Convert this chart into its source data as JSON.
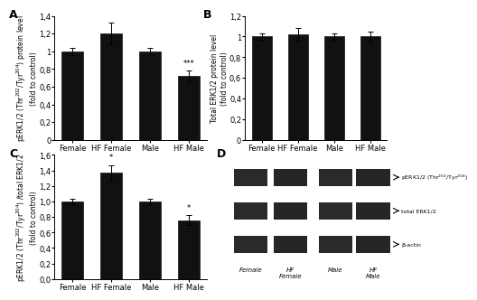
{
  "panel_A": {
    "categories": [
      "Female",
      "HF Female",
      "Male",
      "HF Male"
    ],
    "values": [
      1.0,
      1.2,
      1.0,
      0.72
    ],
    "errors": [
      0.04,
      0.12,
      0.04,
      0.06
    ],
    "ylabel": "pERK1/2 (Thr$^{202}$/Tyr$^{204}$) protein level\n(fold to control)",
    "label": "A",
    "ylim": [
      0,
      1.4
    ],
    "yticks": [
      0,
      0.2,
      0.4,
      0.6,
      0.8,
      1.0,
      1.2,
      1.4
    ],
    "ytick_labels": [
      "0",
      "0,2",
      "0,4",
      "0,6",
      "0,8",
      "1",
      "1,2",
      "1,4"
    ],
    "sig": [
      "",
      "",
      "",
      "***"
    ]
  },
  "panel_B": {
    "categories": [
      "Female",
      "HF Female",
      "Male",
      "HF Male"
    ],
    "values": [
      1.0,
      1.02,
      1.0,
      1.0
    ],
    "errors": [
      0.03,
      0.06,
      0.03,
      0.05
    ],
    "ylabel": "Total ERK1/2 protein level\n(fold to control)",
    "label": "B",
    "ylim": [
      0,
      1.2
    ],
    "yticks": [
      0,
      0.2,
      0.4,
      0.6,
      0.8,
      1.0,
      1.2
    ],
    "ytick_labels": [
      "0",
      "0,2",
      "0,4",
      "0,6",
      "0,8",
      "1",
      "1,2"
    ],
    "sig": [
      "",
      "",
      "",
      ""
    ]
  },
  "panel_C": {
    "categories": [
      "Female",
      "HF Female",
      "Male",
      "HF Male"
    ],
    "values": [
      1.0,
      1.37,
      1.0,
      0.76
    ],
    "errors": [
      0.03,
      0.1,
      0.03,
      0.06
    ],
    "ylabel": "pERK1/2 (Thr$^{202}$/Tyr$^{204}$) /total ERK1/2\n(fold to control)",
    "label": "C",
    "ylim": [
      0,
      1.6
    ],
    "yticks": [
      0,
      0.2,
      0.4,
      0.6,
      0.8,
      1.0,
      1.2,
      1.4,
      1.6
    ],
    "ytick_labels": [
      "0,0",
      "0,2",
      "0,4",
      "0,6",
      "0,8",
      "1,0",
      "1,2",
      "1,4",
      "1,6"
    ],
    "sig": [
      "",
      "*",
      "",
      "*"
    ]
  },
  "panel_D": {
    "label": "D",
    "bands": [
      "pERK1/2 (Thr$^{202}$/Tyr$^{204}$)",
      "total ERK1/2",
      "β-actin"
    ],
    "group_labels": [
      "Female",
      "HF\nFemale",
      "Male",
      "HF\nMale"
    ],
    "band_colors": [
      "#3a3a3a",
      "#3a3a3a",
      "#3a3a3a"
    ]
  },
  "bar_color": "#111111",
  "bar_width": 0.55,
  "font_size": 6.5,
  "label_fontsize": 9
}
